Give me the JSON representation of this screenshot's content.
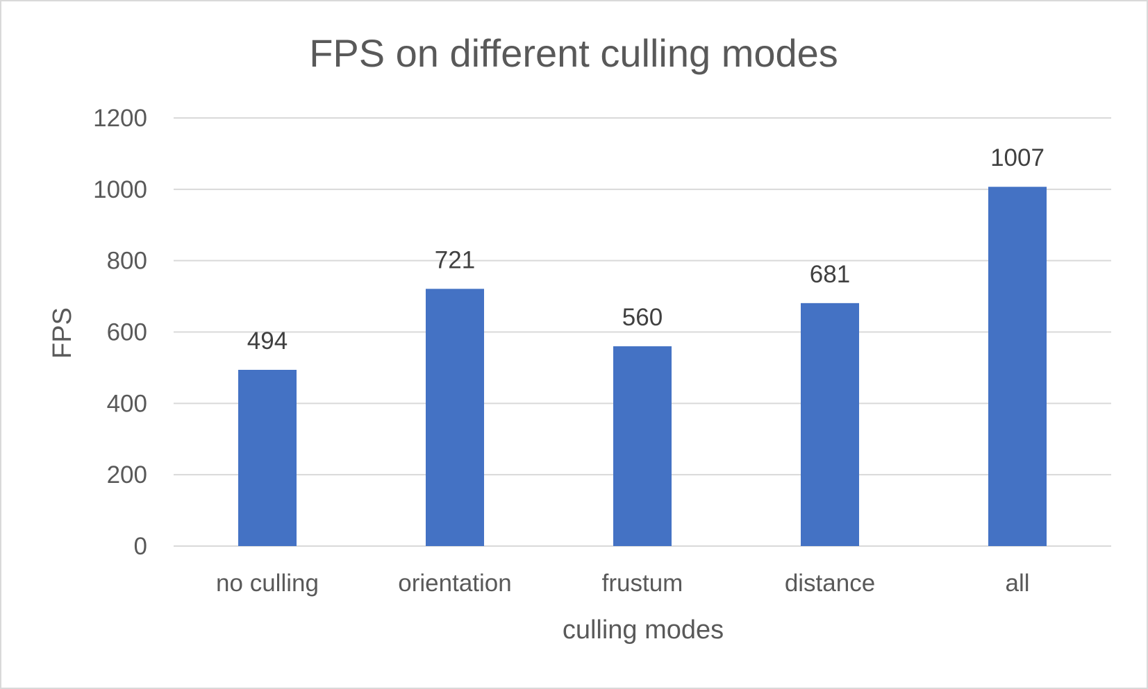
{
  "chart_data": {
    "type": "bar",
    "title": "FPS on different culling modes",
    "xlabel": "culling modes",
    "ylabel": "FPS",
    "categories": [
      "no culling",
      "orientation",
      "frustum",
      "distance",
      "all"
    ],
    "values": [
      494,
      721,
      560,
      681,
      1007
    ],
    "data_labels": [
      "494",
      "721",
      "560",
      "681",
      "1007"
    ],
    "ylim": [
      0,
      1200
    ],
    "yticks": [
      0,
      200,
      400,
      600,
      800,
      1000,
      1200
    ],
    "ytick_labels": [
      "0",
      "200",
      "400",
      "600",
      "800",
      "1000",
      "1200"
    ],
    "grid": true,
    "legend": "none",
    "bar_color": "#4472C4"
  }
}
